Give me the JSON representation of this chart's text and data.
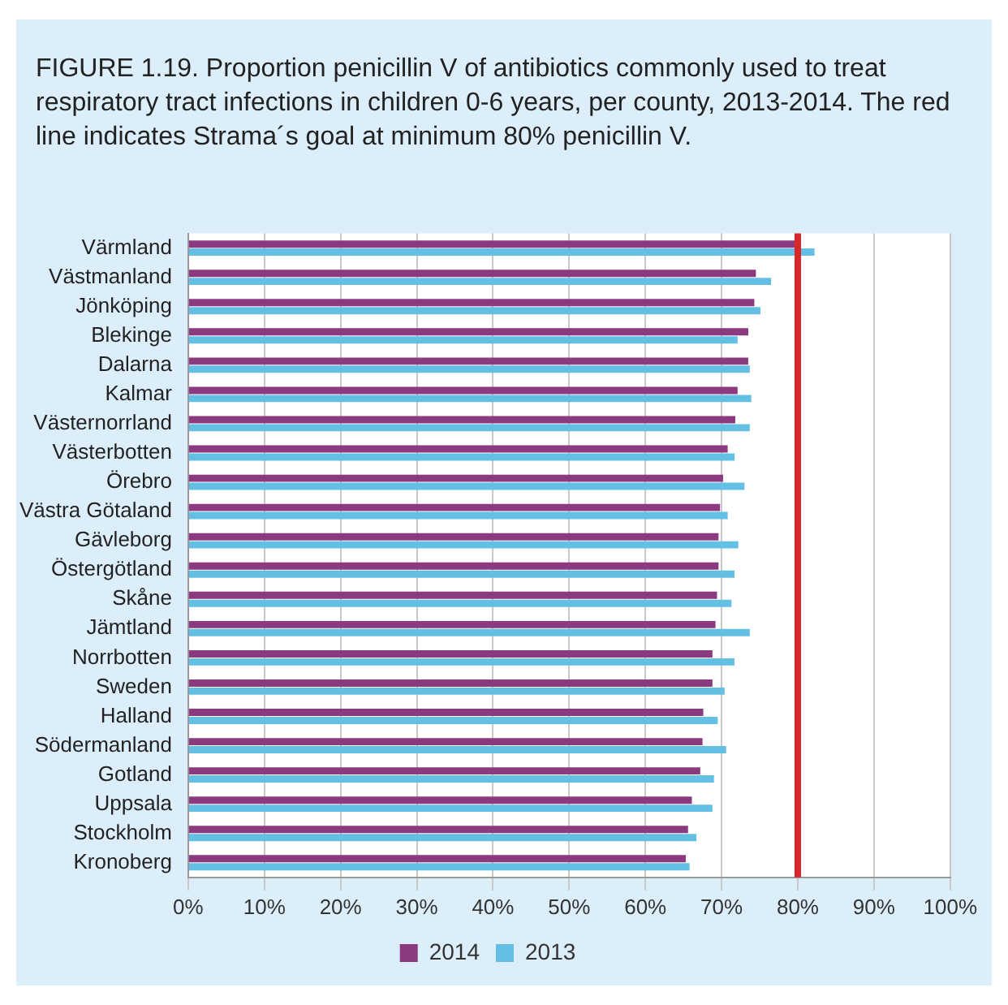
{
  "chart_data": {
    "type": "bar",
    "orientation": "horizontal",
    "title": "FIGURE 1.19. Proportion penicillin V of antibiotics commonly used to treat respiratory tract infections in children 0-6 years, per county, 2013-2014. The red line indicates Strama´s goal at minimum 80% penicillin V.",
    "categories": [
      "Värmland",
      "Västmanland",
      "Jönköping",
      "Blekinge",
      "Dalarna",
      "Kalmar",
      "Västernorrland",
      "Västerbotten",
      "Örebro",
      "Västra Götaland",
      "Gävleborg",
      "Östergötland",
      "Skåne",
      "Jämtland",
      "Norrbotten",
      "Sweden",
      "Halland",
      "Södermanland",
      "Gotland",
      "Uppsala",
      "Stockholm",
      "Kronoberg"
    ],
    "series": [
      {
        "name": "2014",
        "color": "#8b3a80",
        "values": [
          80,
          74.5,
          74.3,
          73.5,
          73.5,
          72.1,
          71.8,
          70.8,
          70.2,
          69.8,
          69.6,
          69.6,
          69.4,
          69.2,
          68.8,
          68.8,
          67.6,
          67.5,
          67.2,
          66.1,
          65.6,
          65.3
        ]
      },
      {
        "name": "2013",
        "color": "#64bfe4",
        "values": [
          82.2,
          76.5,
          75.1,
          72.1,
          73.7,
          73.9,
          73.7,
          71.7,
          73,
          70.8,
          72.2,
          71.7,
          71.3,
          73.7,
          71.7,
          70.4,
          69.5,
          70.6,
          69,
          68.8,
          66.7,
          65.8
        ]
      }
    ],
    "xlim": [
      0,
      100
    ],
    "xticks": [
      {
        "value": 0,
        "label": "0%"
      },
      {
        "value": 10,
        "label": "10%"
      },
      {
        "value": 20,
        "label": "20%"
      },
      {
        "value": 30,
        "label": "30%"
      },
      {
        "value": 40,
        "label": "40%"
      },
      {
        "value": 50,
        "label": "50%"
      },
      {
        "value": 60,
        "label": "60%"
      },
      {
        "value": 70,
        "label": "70%"
      },
      {
        "value": 80,
        "label": "80%"
      },
      {
        "value": 90,
        "label": "90%"
      },
      {
        "value": 100,
        "label": "100%"
      }
    ],
    "ref_lines": [
      {
        "axis": "x",
        "value": 80,
        "color": "#d8262b"
      }
    ],
    "grid": "x",
    "legend": "bottom"
  }
}
